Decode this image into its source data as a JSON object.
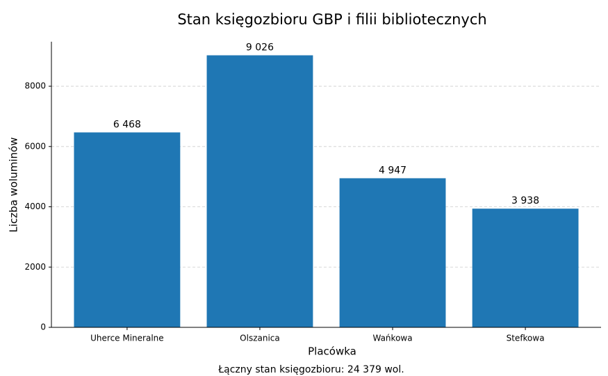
{
  "chart_data": {
    "type": "bar",
    "title": "Stan księgozbioru GBP i filii bibliotecznych",
    "xlabel": "Placówka",
    "ylabel": "Liczba woluminów",
    "categories": [
      "Uherce Mineralne",
      "Olszanica",
      "Wańkowa",
      "Stefkowa"
    ],
    "values": [
      6468,
      9026,
      4947,
      3938
    ],
    "value_labels": [
      "6 468",
      "9 026",
      "4 947",
      "3 938"
    ],
    "color": "#1f77b4",
    "ylim": [
      0,
      9477
    ],
    "yticks": [
      0,
      2000,
      4000,
      6000,
      8000
    ],
    "grid": true,
    "footnote": "Łączny stan księgozbioru: 24 379 wol."
  }
}
